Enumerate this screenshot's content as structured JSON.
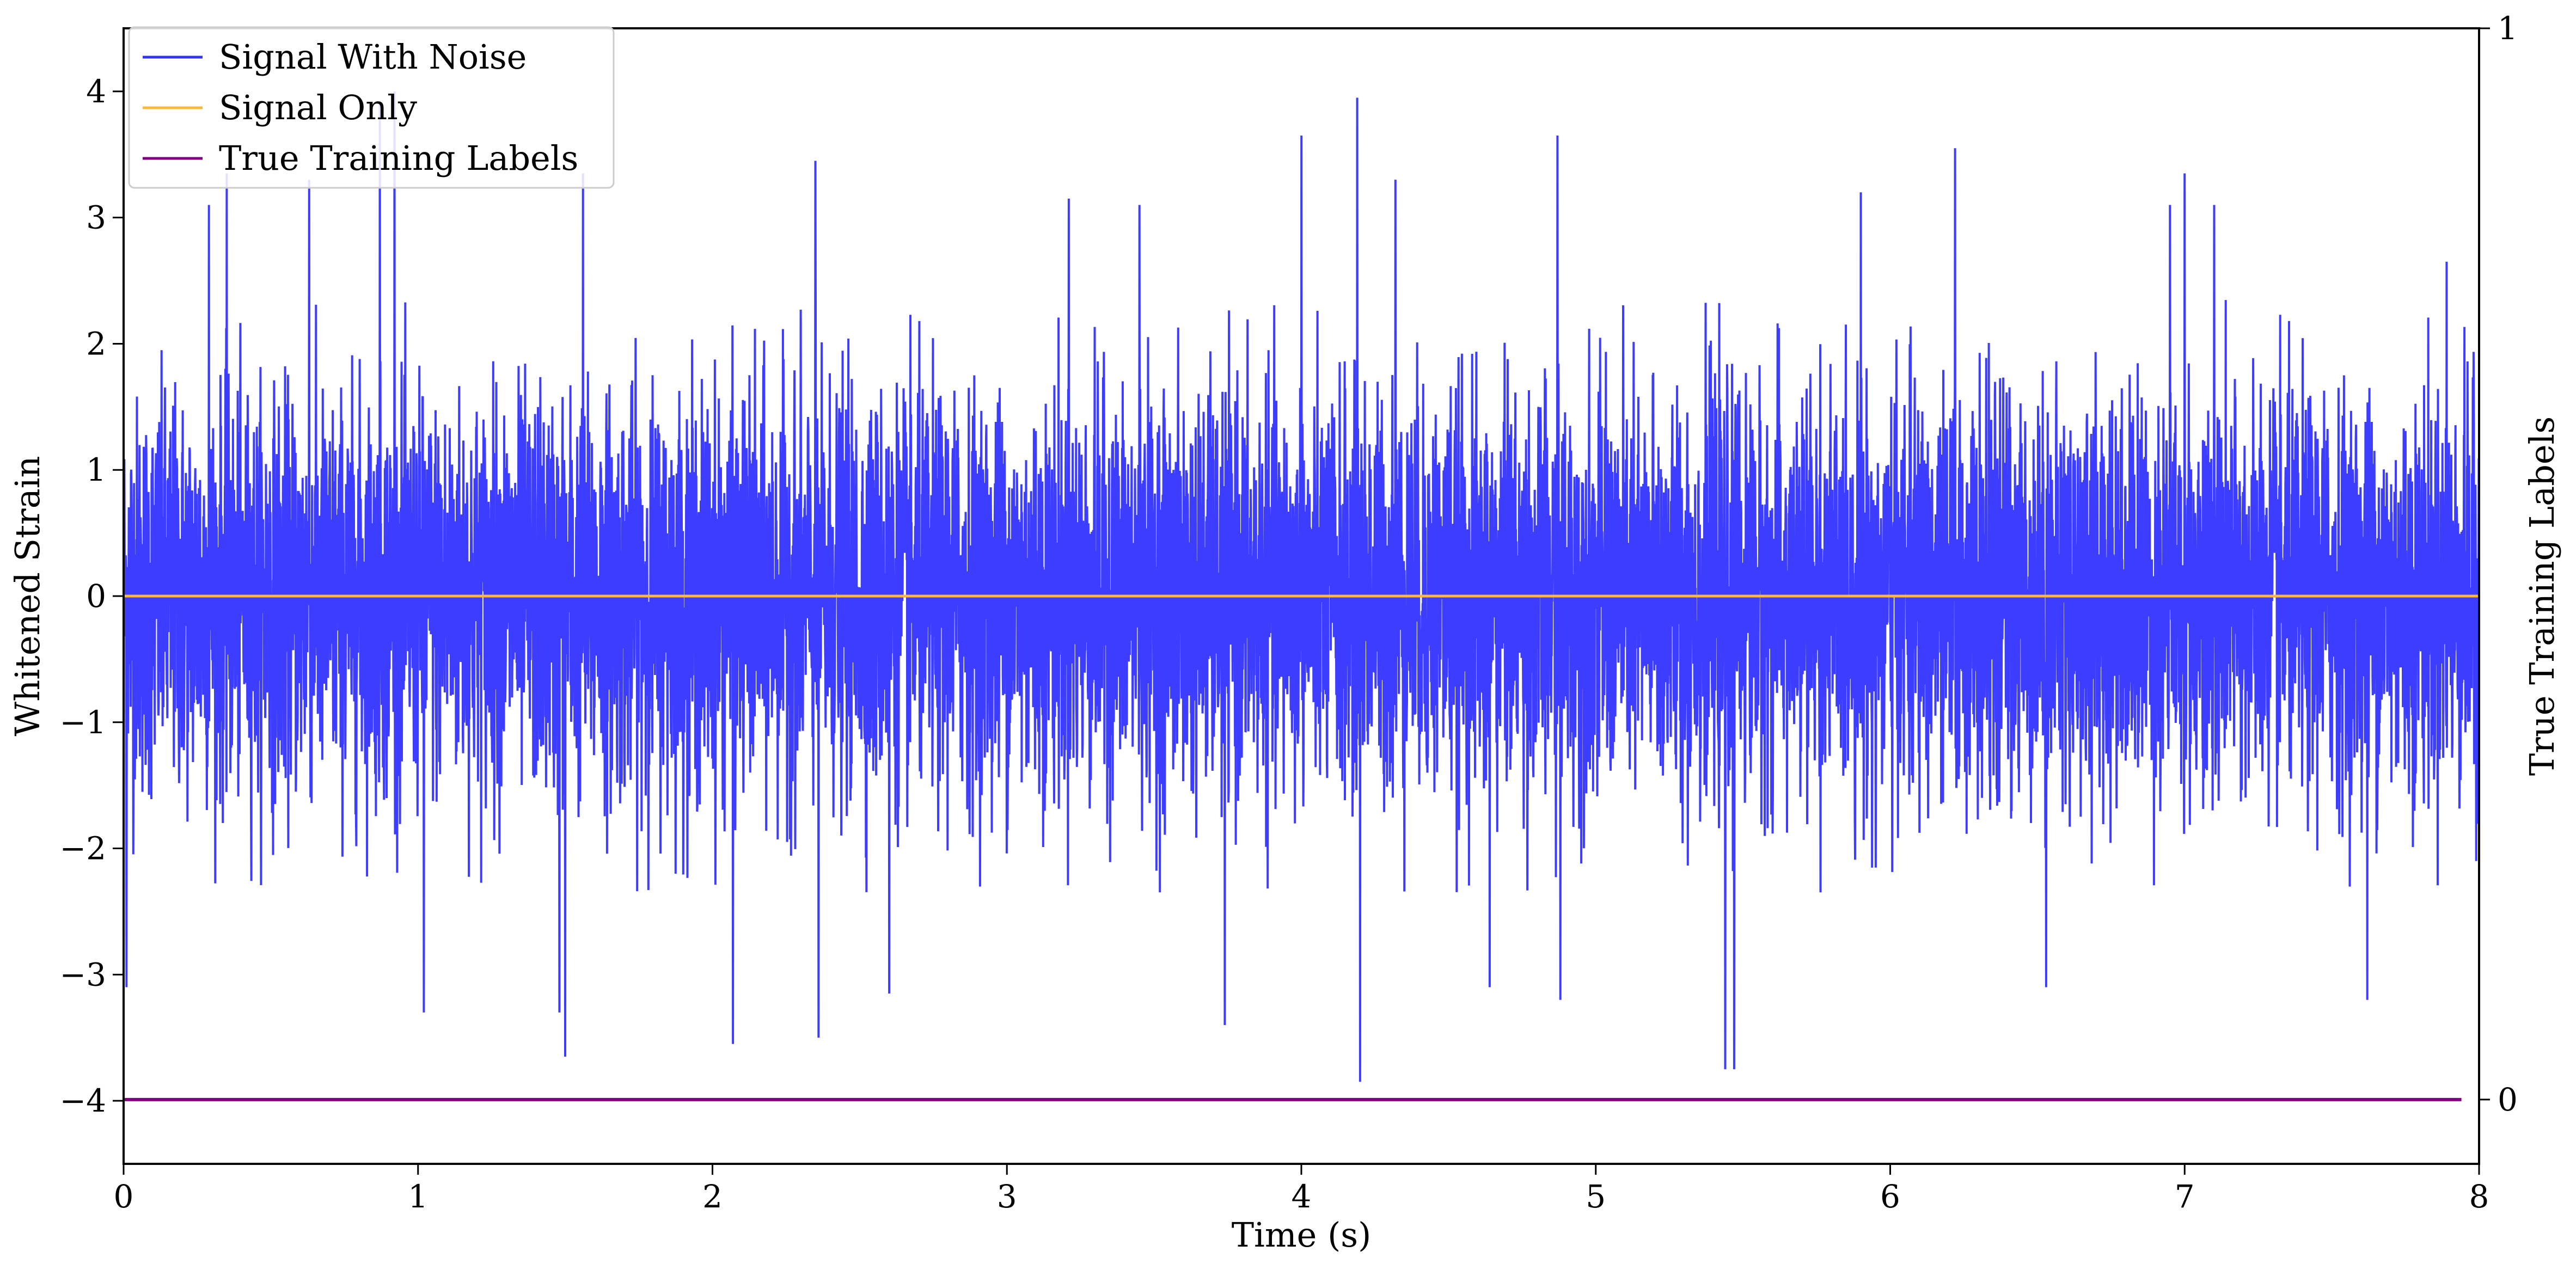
{
  "chart_data": {
    "type": "line",
    "xlabel": "Time (s)",
    "ylabel": "Whitened Strain",
    "y2label": "True Training Labels",
    "xlim": [
      0,
      8
    ],
    "ylim": [
      -4.5,
      4.5
    ],
    "y2lim": [
      -0.06,
      1.0
    ],
    "x_ticks": [
      0,
      1,
      2,
      3,
      4,
      5,
      6,
      7,
      8
    ],
    "y_ticks": [
      -4,
      -3,
      -2,
      -1,
      0,
      1,
      2,
      3,
      4
    ],
    "y2_ticks": [
      0,
      1
    ],
    "grid": false,
    "legend_position": "top-left",
    "series": [
      {
        "name": "Signal With Noise",
        "color": "#3333ff",
        "axis": "left",
        "x_range": [
          0,
          8
        ],
        "peaks": [
          {
            "x": 0.01,
            "y": 2.4
          },
          {
            "x": 0.01,
            "y": -3.1
          },
          {
            "x": 0.29,
            "y": 3.1
          },
          {
            "x": 0.35,
            "y": 3.35
          },
          {
            "x": 0.63,
            "y": 3.3
          },
          {
            "x": 0.87,
            "y": 3.9
          },
          {
            "x": 0.92,
            "y": 4.0
          },
          {
            "x": 1.02,
            "y": -3.3
          },
          {
            "x": 1.48,
            "y": -3.3
          },
          {
            "x": 1.5,
            "y": -3.65
          },
          {
            "x": 1.56,
            "y": 3.35
          },
          {
            "x": 2.07,
            "y": -3.55
          },
          {
            "x": 2.35,
            "y": 3.45
          },
          {
            "x": 2.36,
            "y": -3.5
          },
          {
            "x": 2.6,
            "y": -3.15
          },
          {
            "x": 3.21,
            "y": 3.15
          },
          {
            "x": 3.45,
            "y": 3.1
          },
          {
            "x": 3.74,
            "y": -3.4
          },
          {
            "x": 4.0,
            "y": 3.65
          },
          {
            "x": 4.19,
            "y": 3.95
          },
          {
            "x": 4.2,
            "y": -3.85
          },
          {
            "x": 4.32,
            "y": 3.3
          },
          {
            "x": 4.64,
            "y": -3.1
          },
          {
            "x": 4.87,
            "y": 3.65
          },
          {
            "x": 4.88,
            "y": -3.2
          },
          {
            "x": 5.44,
            "y": -3.75
          },
          {
            "x": 5.47,
            "y": -3.75
          },
          {
            "x": 5.9,
            "y": 3.2
          },
          {
            "x": 6.22,
            "y": 3.55
          },
          {
            "x": 6.53,
            "y": -3.1
          },
          {
            "x": 6.95,
            "y": 3.1
          },
          {
            "x": 7.0,
            "y": 3.35
          },
          {
            "x": 7.1,
            "y": 3.1
          },
          {
            "x": 7.62,
            "y": -3.2
          },
          {
            "x": 7.89,
            "y": 2.65
          },
          {
            "x": 7.99,
            "y": -2.1
          }
        ]
      },
      {
        "name": "Signal Only",
        "color": "#ffb833",
        "axis": "left",
        "x": [
          0,
          8
        ],
        "values": [
          0,
          0
        ]
      },
      {
        "name": "True Training Labels",
        "color": "#800080",
        "axis": "right",
        "x": [
          0,
          7.94
        ],
        "values": [
          0,
          0
        ]
      }
    ]
  }
}
